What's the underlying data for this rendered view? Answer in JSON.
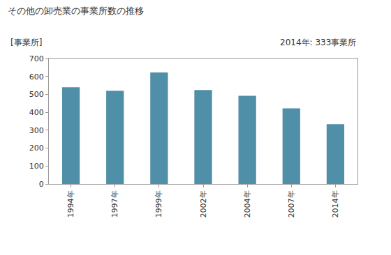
{
  "chart_data": {
    "type": "bar",
    "title": "その他の卸売業の事業所数の推移",
    "ylabel": "[事業所]",
    "annotations": [
      "2014年: 333事業所"
    ],
    "categories": [
      "1994年",
      "1997年",
      "1999年",
      "2002年",
      "2004年",
      "2007年",
      "2014年"
    ],
    "values": [
      540,
      520,
      622,
      524,
      492,
      422,
      333
    ],
    "color": "#4f8fa8",
    "ylim": [
      0,
      700
    ],
    "yticks": [
      0,
      100,
      200,
      300,
      400,
      500,
      600,
      700
    ],
    "grid": false
  }
}
